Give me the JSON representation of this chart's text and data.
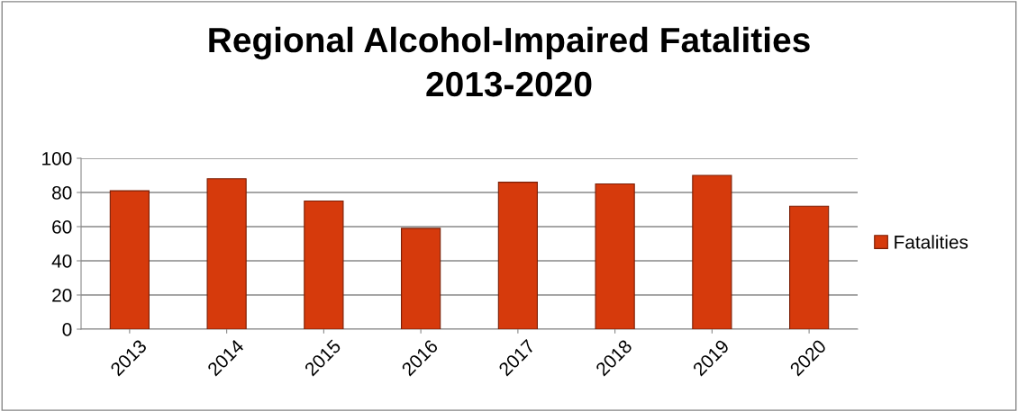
{
  "chart_data": {
    "type": "bar",
    "title": "Regional Alcohol-Impaired Fatalities\n2013-2020",
    "categories": [
      "2013",
      "2014",
      "2015",
      "2016",
      "2017",
      "2018",
      "2019",
      "2020"
    ],
    "series": [
      {
        "name": "Fatalities",
        "color": "#d63a0c",
        "values": [
          81,
          88,
          75,
          59,
          86,
          85,
          90,
          72
        ]
      }
    ],
    "ylim": [
      0,
      100
    ],
    "yticks": [
      0,
      20,
      40,
      60,
      80,
      100
    ],
    "grid": "y",
    "legend": "right"
  }
}
